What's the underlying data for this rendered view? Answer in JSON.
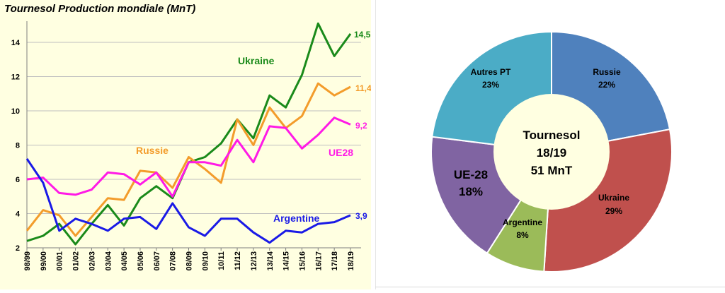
{
  "left_chart": {
    "title": "Tournesol Production mondiale (MnT)",
    "y_ticks": [
      "2",
      "4",
      "6",
      "8",
      "10",
      "12",
      "14"
    ],
    "x_labels": [
      "98/99",
      "99/00",
      "00/01",
      "01/02",
      "02/03",
      "03/04",
      "04/05",
      "05/06",
      "06/07",
      "07/08",
      "08/09",
      "09/10",
      "10/11",
      "11/12",
      "12/13",
      "13/14",
      "14/15",
      "15/16",
      "16/17",
      "17/18",
      "18/19"
    ],
    "series_labels": {
      "ukraine": "Ukraine",
      "russie": "Russie",
      "ue28": "UE28",
      "argentine": "Argentine"
    },
    "end_labels": {
      "ukraine": "14,5",
      "russie": "11,4",
      "ue28": "9,2",
      "argentine": "3,9"
    }
  },
  "right_chart": {
    "center_line1": "Tournesol",
    "center_line2": "18/19",
    "center_line3": "51 MnT",
    "slices": [
      {
        "label": "Russie",
        "pct": "22%",
        "color": "#4f81bd"
      },
      {
        "label": "Ukraine",
        "pct": "29%",
        "color": "#c0504d"
      },
      {
        "label": "Argentine",
        "pct": "8%",
        "color": "#9bbb59"
      },
      {
        "label": "UE-28",
        "pct": "18%",
        "color": "#8064a2"
      },
      {
        "label": "Autres PT",
        "pct": "23%",
        "color": "#4bacc6"
      }
    ]
  },
  "chart_data": [
    {
      "type": "line",
      "title": "Tournesol Production mondiale (MnT)",
      "xlabel": "",
      "ylabel": "",
      "ylim": [
        2,
        15
      ],
      "grid": "horizontal",
      "x": [
        "98/99",
        "99/00",
        "00/01",
        "01/02",
        "02/03",
        "03/04",
        "04/05",
        "05/06",
        "06/07",
        "07/08",
        "08/09",
        "09/10",
        "10/11",
        "11/12",
        "12/13",
        "13/14",
        "14/15",
        "15/16",
        "16/17",
        "17/18",
        "18/19"
      ],
      "series": [
        {
          "name": "Ukraine",
          "color": "#1a8a1a",
          "values": [
            2.4,
            2.7,
            3.4,
            2.2,
            3.4,
            4.5,
            3.3,
            4.9,
            5.6,
            4.9,
            7.0,
            7.3,
            8.1,
            9.5,
            8.4,
            10.9,
            10.2,
            12.1,
            15.1,
            13.2,
            14.5
          ]
        },
        {
          "name": "Russie",
          "color": "#f39c2b",
          "values": [
            3.0,
            4.2,
            3.9,
            2.7,
            3.8,
            4.9,
            4.8,
            6.5,
            6.4,
            5.5,
            7.3,
            6.6,
            5.8,
            9.5,
            8.0,
            10.2,
            9.0,
            9.7,
            11.6,
            10.9,
            11.4
          ]
        },
        {
          "name": "UE28",
          "color": "#ff1ae6",
          "values": [
            6.0,
            6.1,
            5.2,
            5.1,
            5.4,
            6.4,
            6.3,
            5.7,
            6.4,
            5.0,
            7.0,
            7.0,
            6.8,
            8.3,
            7.0,
            9.1,
            9.0,
            7.8,
            8.6,
            9.6,
            9.2
          ]
        },
        {
          "name": "Argentine",
          "color": "#1a1ae6",
          "values": [
            7.2,
            5.8,
            3.0,
            3.7,
            3.4,
            3.0,
            3.7,
            3.8,
            3.1,
            4.6,
            3.2,
            2.7,
            3.7,
            3.7,
            2.9,
            2.3,
            3.0,
            2.9,
            3.4,
            3.5,
            3.9
          ]
        }
      ],
      "end_labels": {
        "Ukraine": "14,5",
        "Russie": "11,4",
        "UE28": "9,2",
        "Argentine": "3,9"
      }
    },
    {
      "type": "pie",
      "donut": true,
      "title": "",
      "center_text": [
        "Tournesol",
        "18/19",
        "51 MnT"
      ],
      "categories": [
        "Russie",
        "Ukraine",
        "Argentine",
        "UE-28",
        "Autres PT"
      ],
      "values": [
        22,
        29,
        8,
        18,
        23
      ],
      "colors": [
        "#4f81bd",
        "#c0504d",
        "#9bbb59",
        "#8064a2",
        "#4bacc6"
      ]
    }
  ]
}
